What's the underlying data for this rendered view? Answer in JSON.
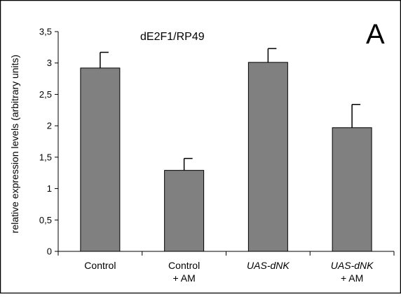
{
  "chart_data": {
    "type": "bar",
    "panel_label": "A",
    "title": "dE2F1/RP49",
    "xlabel": "",
    "ylabel": "relative expression levels (arbitrary units)",
    "ylim": [
      0,
      3.5
    ],
    "yticks": [
      {
        "value": 0,
        "label": "0"
      },
      {
        "value": 0.5,
        "label": "0,5"
      },
      {
        "value": 1,
        "label": "1"
      },
      {
        "value": 1.5,
        "label": "1,5"
      },
      {
        "value": 2,
        "label": "2"
      },
      {
        "value": 2.5,
        "label": "2,5"
      },
      {
        "value": 3,
        "label": "3"
      },
      {
        "value": 3.5,
        "label": "3,5"
      }
    ],
    "categories": [
      {
        "line1": "Control",
        "line2": "",
        "italic": false
      },
      {
        "line1": "Control",
        "line2": "+ AM",
        "italic": false
      },
      {
        "line1": "UAS-dNK",
        "line2": "",
        "italic": true
      },
      {
        "line1": "UAS-dNK",
        "line2": "+ AM",
        "italic": true
      }
    ],
    "values": [
      2.92,
      1.29,
      3.01,
      1.97
    ],
    "errors": [
      0.25,
      0.19,
      0.22,
      0.37
    ],
    "bar_color": "#808080",
    "grid": false,
    "legend": "none"
  }
}
